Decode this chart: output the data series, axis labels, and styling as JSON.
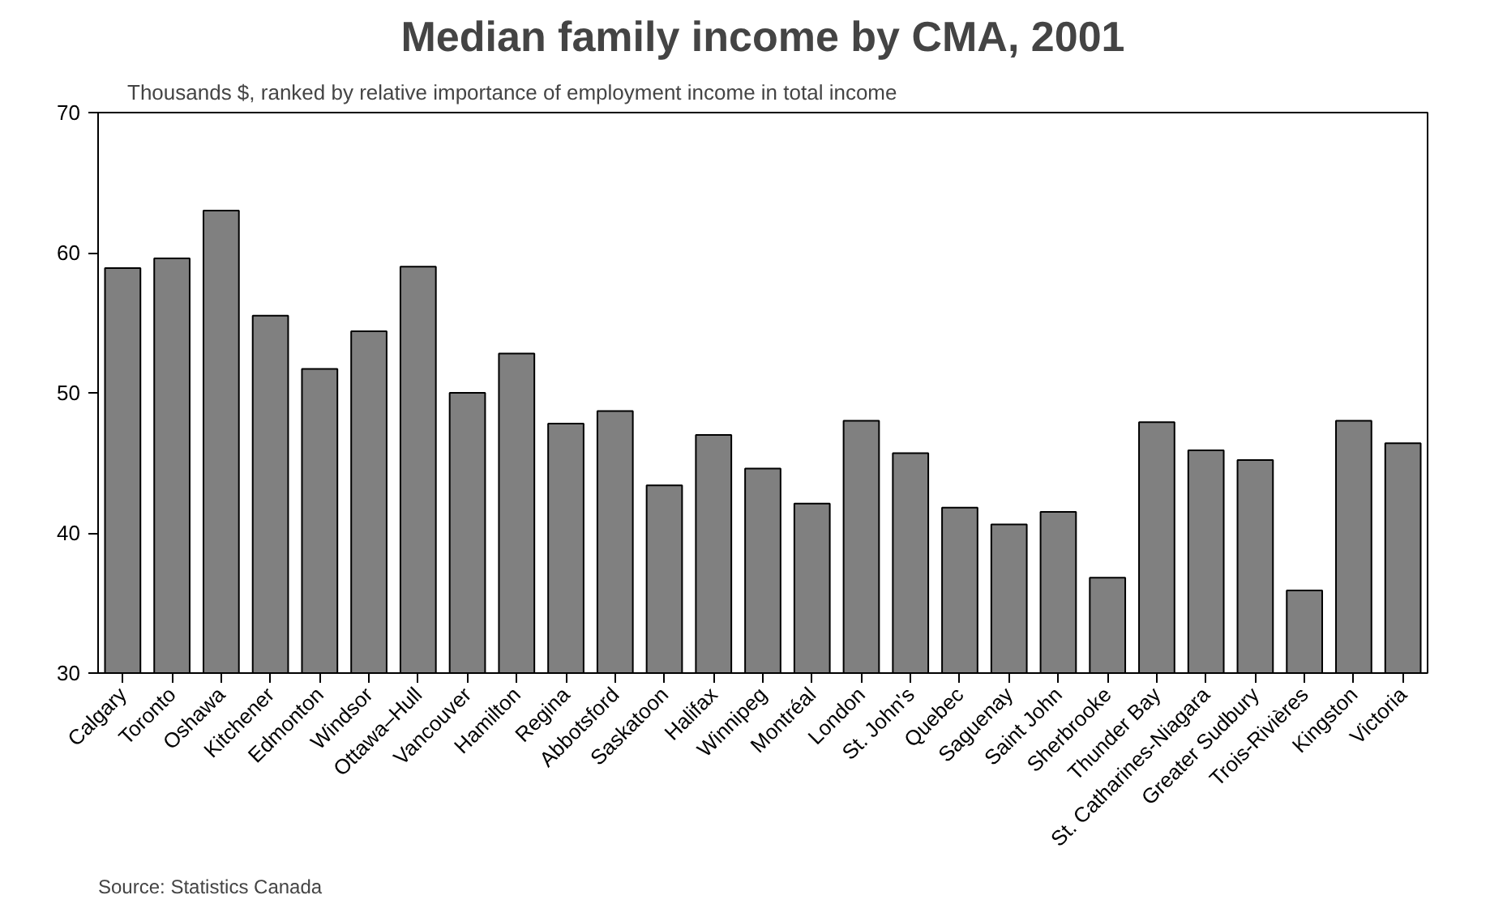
{
  "chart_data": {
    "type": "bar",
    "title": "Median family income by CMA, 2001",
    "subtitle": "Thousands $, ranked by relative importance of employment income in total income",
    "categories": [
      "Calgary",
      "Toronto",
      "Oshawa",
      "Kitchener",
      "Edmonton",
      "Windsor",
      "Ottawa–Hull",
      "Vancouver",
      "Hamilton",
      "Regina",
      "Abbotsford",
      "Saskatoon",
      "Halifax",
      "Winnipeg",
      "Montréal",
      "London",
      "St. John's",
      "Quebec",
      "Saguenay",
      "Saint John",
      "Sherbrooke",
      "Thunder Bay",
      "St. Catharines-Niagara",
      "Greater Sudbury",
      "Trois-Rivières",
      "Kingston",
      "Victoria"
    ],
    "values": [
      58.9,
      59.6,
      63.0,
      55.5,
      51.7,
      54.4,
      59.0,
      50.0,
      52.8,
      47.8,
      48.7,
      43.4,
      47.0,
      44.6,
      42.1,
      48.0,
      45.7,
      41.8,
      40.6,
      41.5,
      36.8,
      47.9,
      45.9,
      45.2,
      35.9,
      48.0,
      46.4
    ],
    "color": "#808080",
    "ylim": [
      30,
      70
    ],
    "yticks": [
      30,
      40,
      50,
      60,
      70
    ],
    "grid": false,
    "annotations": [
      "Source: Statistics Canada"
    ]
  }
}
